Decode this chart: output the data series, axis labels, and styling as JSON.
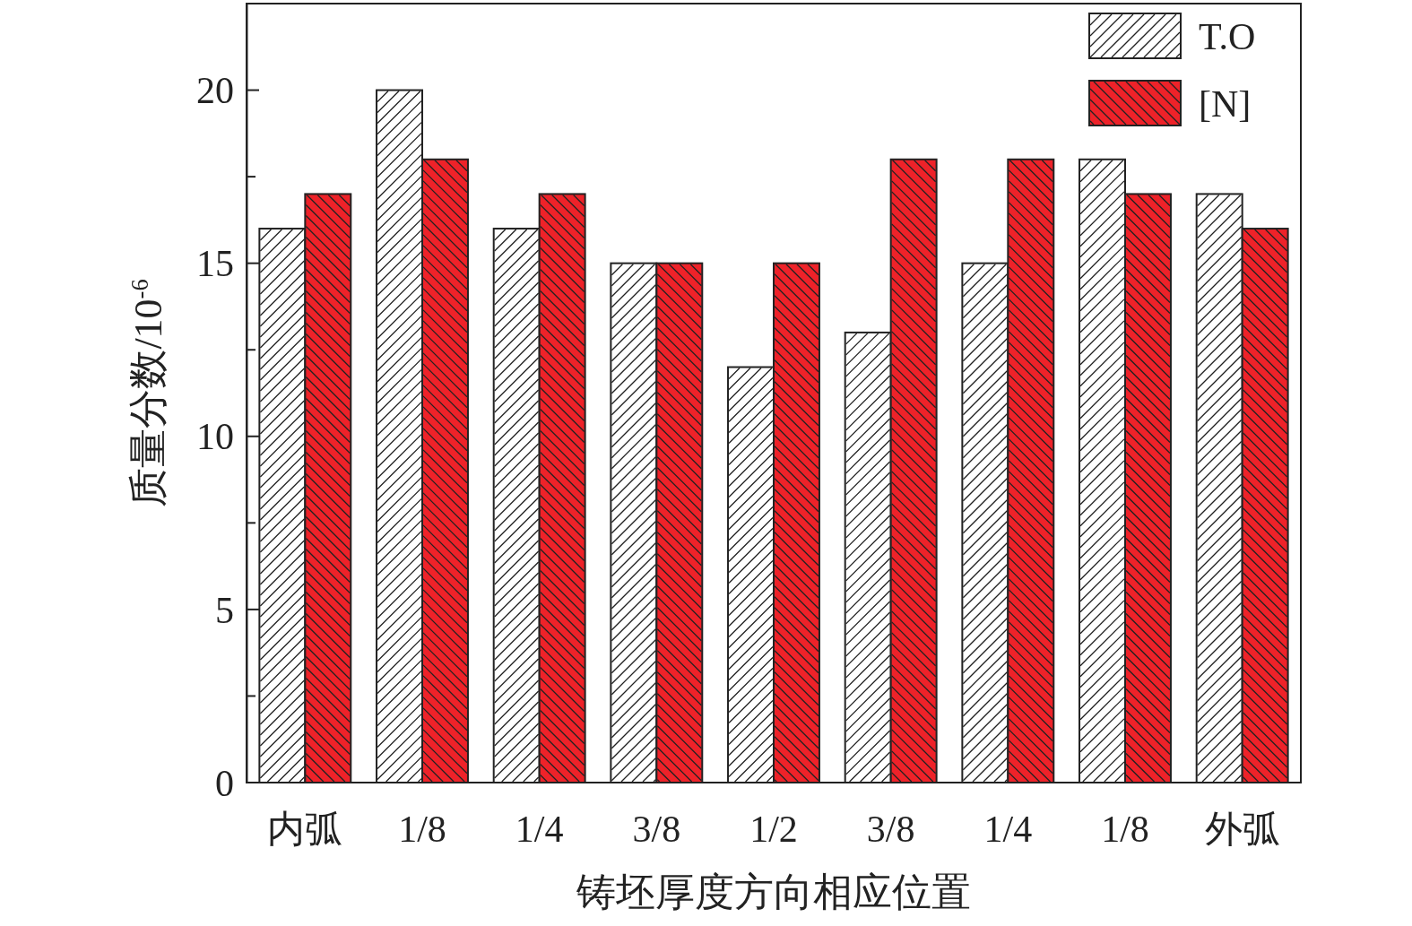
{
  "chart_data": {
    "type": "bar",
    "xlabel": "铸坯厚度方向相应位置",
    "ylabel": "质量分数/10$^{-6}$",
    "categories": [
      "内弧",
      "1/8",
      "1/4",
      "3/8",
      "1/2",
      "3/8",
      "1/4",
      "1/8",
      "外弧"
    ],
    "series": [
      {
        "name": "T.O",
        "color": "#ffffff",
        "values": [
          16,
          20,
          16,
          15,
          12,
          13,
          15,
          18,
          17
        ]
      },
      {
        "name": "[N]",
        "color": "#ee2229",
        "values": [
          17,
          18,
          17,
          15,
          15,
          18,
          18,
          17,
          16
        ]
      }
    ],
    "ylim": [
      0,
      22.5
    ],
    "yticks": [
      0,
      {
        "value": 2.5,
        "label": null
      },
      5,
      {
        "value": 7.5,
        "label": null
      },
      10,
      {
        "value": 12.5,
        "label": null
      },
      15,
      {
        "value": 17.5,
        "label": null
      },
      20
    ],
    "grid": false,
    "legend": "top right"
  }
}
